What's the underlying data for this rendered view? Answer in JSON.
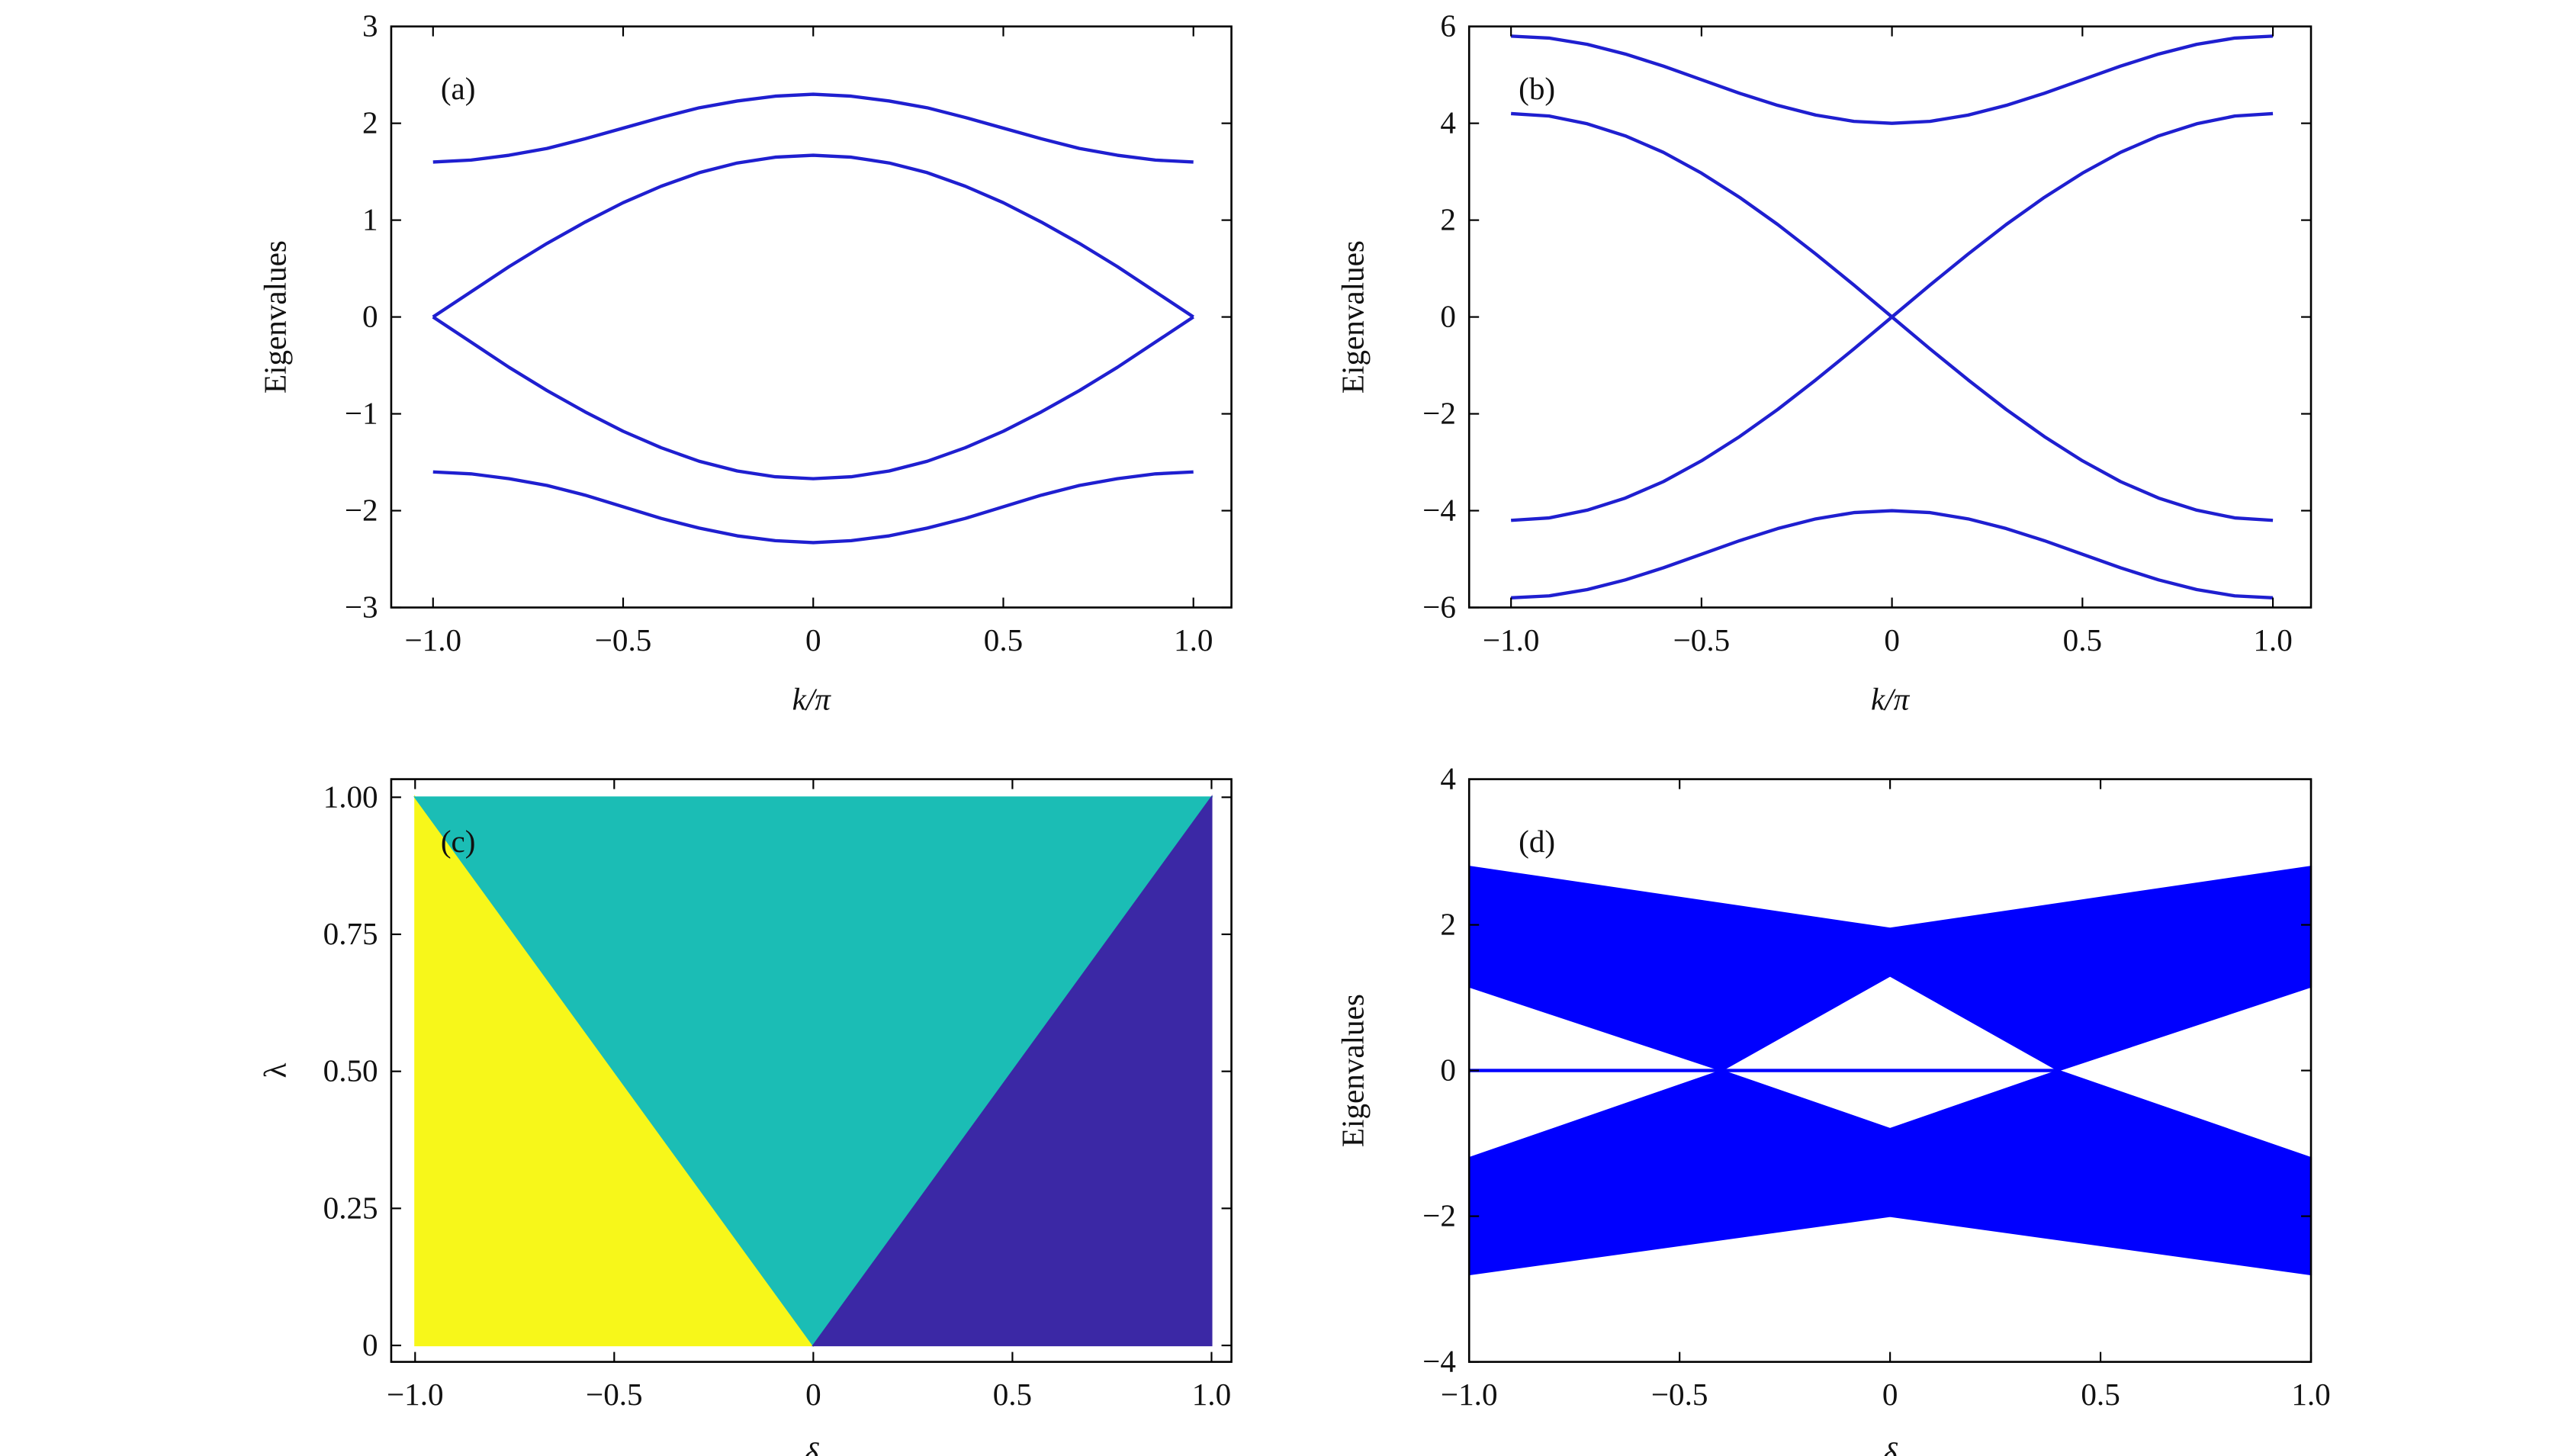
{
  "chart_data": [
    {
      "type": "line",
      "panel_label": "(a)",
      "xlabel": "k/π",
      "ylabel": "Eigenvalues",
      "xlim": [
        -1.11,
        1.1
      ],
      "ylim": [
        -3,
        3
      ],
      "xticks": [
        {
          "value": -1,
          "label": "−1.0"
        },
        {
          "value": -0.5,
          "label": "−0.5"
        },
        0,
        0.5,
        {
          "value": 1,
          "label": "1.0"
        }
      ],
      "yticks": [
        {
          "value": -3,
          "label": "−3"
        },
        {
          "value": -2,
          "label": "−2"
        },
        {
          "value": -1,
          "label": "−1"
        },
        0,
        1,
        2,
        3
      ],
      "x": [
        -1,
        -0.9,
        -0.8,
        -0.7,
        -0.6,
        -0.5,
        -0.4,
        -0.3,
        -0.2,
        -0.1,
        0,
        0.1,
        0.2,
        0.3,
        0.4,
        0.5,
        0.6,
        0.7,
        0.8,
        0.9,
        1
      ],
      "series": [
        {
          "color": "#1f1fd0",
          "values": [
            1.6,
            1.62,
            1.67,
            1.74,
            1.84,
            1.95,
            2.06,
            2.16,
            2.23,
            2.28,
            2.3,
            2.28,
            2.23,
            2.16,
            2.06,
            1.95,
            1.84,
            1.74,
            1.67,
            1.62,
            1.6
          ]
        },
        {
          "color": "#1f1fd0",
          "values": [
            0,
            0.26,
            0.52,
            0.76,
            0.98,
            1.18,
            1.35,
            1.49,
            1.59,
            1.65,
            1.67,
            1.65,
            1.59,
            1.49,
            1.35,
            1.18,
            0.98,
            0.76,
            0.52,
            0.26,
            0
          ]
        },
        {
          "color": "#1f1fd0",
          "values": [
            0,
            -0.26,
            -0.52,
            -0.76,
            -0.98,
            -1.18,
            -1.35,
            -1.49,
            -1.59,
            -1.65,
            -1.67,
            -1.65,
            -1.59,
            -1.49,
            -1.35,
            -1.18,
            -0.98,
            -0.76,
            -0.52,
            -0.26,
            0
          ]
        },
        {
          "color": "#1f1fd0",
          "values": [
            -1.6,
            -1.62,
            -1.67,
            -1.74,
            -1.84,
            -1.96,
            -2.08,
            -2.18,
            -2.26,
            -2.31,
            -2.33,
            -2.31,
            -2.26,
            -2.18,
            -2.08,
            -1.96,
            -1.84,
            -1.74,
            -1.67,
            -1.62,
            -1.6
          ]
        }
      ]
    },
    {
      "type": "line",
      "panel_label": "(b)",
      "xlabel": "k/π",
      "ylabel": "Eigenvalues",
      "xlim": [
        -1.11,
        1.1
      ],
      "ylim": [
        -6,
        6
      ],
      "xticks": [
        {
          "value": -1,
          "label": "−1.0"
        },
        {
          "value": -0.5,
          "label": "−0.5"
        },
        0,
        0.5,
        {
          "value": 1,
          "label": "1.0"
        }
      ],
      "yticks": [
        {
          "value": -6,
          "label": "−6"
        },
        {
          "value": -4,
          "label": "−4"
        },
        {
          "value": -2,
          "label": "−2"
        },
        0,
        2,
        4,
        6
      ],
      "x": [
        -1,
        -0.9,
        -0.8,
        -0.7,
        -0.6,
        -0.5,
        -0.4,
        -0.3,
        -0.2,
        -0.1,
        0,
        0.1,
        0.2,
        0.3,
        0.4,
        0.5,
        0.6,
        0.7,
        0.8,
        0.9,
        1
      ],
      "series": [
        {
          "color": "#1f1fd0",
          "values": [
            5.8,
            5.76,
            5.63,
            5.43,
            5.18,
            4.9,
            4.62,
            4.37,
            4.17,
            4.04,
            4.0,
            4.04,
            4.17,
            4.37,
            4.62,
            4.9,
            5.18,
            5.43,
            5.63,
            5.76,
            5.8
          ]
        },
        {
          "color": "#1f1fd0",
          "values": [
            4.2,
            4.15,
            3.99,
            3.74,
            3.4,
            2.97,
            2.47,
            1.91,
            1.3,
            0.66,
            0,
            -0.66,
            -1.3,
            -1.91,
            -2.47,
            -2.97,
            -3.4,
            -3.74,
            -3.99,
            -4.15,
            -4.2
          ]
        },
        {
          "color": "#1f1fd0",
          "values": [
            -4.2,
            -4.15,
            -3.99,
            -3.74,
            -3.4,
            -2.97,
            -2.47,
            -1.91,
            -1.3,
            -0.66,
            0,
            0.66,
            1.3,
            1.91,
            2.47,
            2.97,
            3.4,
            3.74,
            3.99,
            4.15,
            4.2
          ]
        },
        {
          "color": "#1f1fd0",
          "values": [
            -5.8,
            -5.76,
            -5.63,
            -5.43,
            -5.18,
            -4.9,
            -4.62,
            -4.37,
            -4.17,
            -4.04,
            -4.0,
            -4.04,
            -4.17,
            -4.37,
            -4.62,
            -4.9,
            -5.18,
            -5.43,
            -5.63,
            -5.76,
            -5.8
          ]
        }
      ]
    },
    {
      "type": "area",
      "panel_label": "(c)",
      "xlabel": "δ",
      "ylabel": "λ",
      "xlim": [
        -1.06,
        1.05
      ],
      "ylim": [
        -0.03,
        1.033
      ],
      "xticks": [
        {
          "value": -1,
          "label": "−1.0"
        },
        {
          "value": -0.5,
          "label": "−0.5"
        },
        0,
        0.5,
        {
          "value": 1,
          "label": "1.0"
        }
      ],
      "yticks": [
        0,
        0.25,
        {
          "value": 0.5,
          "label": "0.50"
        },
        {
          "value": 0.75,
          "label": "0.75"
        },
        {
          "value": 1,
          "label": "1.00"
        }
      ],
      "regions": [
        {
          "color": "#f7f71a",
          "x": [
            -1,
            -1,
            0
          ],
          "y": [
            0,
            1,
            0
          ]
        },
        {
          "color": "#1bbdb5",
          "x": [
            -1,
            1,
            0
          ],
          "y": [
            1,
            1,
            0
          ]
        },
        {
          "color": "#3b28a5",
          "x": [
            0,
            1,
            1
          ],
          "y": [
            0,
            1,
            0
          ]
        }
      ]
    },
    {
      "type": "area",
      "panel_label": "(d)",
      "xlabel": "δ",
      "ylabel": "Eigenvalues",
      "xlim": [
        -1,
        1
      ],
      "ylim": [
        -4,
        4
      ],
      "xticks": [
        {
          "value": -1,
          "label": "−1.0"
        },
        {
          "value": -0.5,
          "label": "−0.5"
        },
        0,
        0.5,
        {
          "value": 1,
          "label": "1.0"
        }
      ],
      "yticks": [
        {
          "value": -4,
          "label": "−4"
        },
        {
          "value": -2,
          "label": "−2"
        },
        0,
        2,
        4
      ],
      "regions": [
        {
          "color": "#0000ff",
          "x": [
            -1,
            0,
            1,
            1,
            0.4,
            0,
            -0.4,
            -1
          ],
          "y": [
            2.8,
            1.95,
            2.8,
            1.15,
            0,
            1.3,
            0,
            1.15
          ]
        },
        {
          "color": "#0000ff",
          "x": [
            -1,
            -0.4,
            0,
            0.4,
            1,
            1,
            0,
            -1
          ],
          "y": [
            -1.2,
            0,
            -0.8,
            0,
            -1.2,
            -2.8,
            -2.0,
            -2.8
          ]
        }
      ],
      "x": [
        -1,
        0.4
      ],
      "series": [
        {
          "color": "#0000ff",
          "values": [
            0,
            0
          ]
        }
      ]
    }
  ]
}
